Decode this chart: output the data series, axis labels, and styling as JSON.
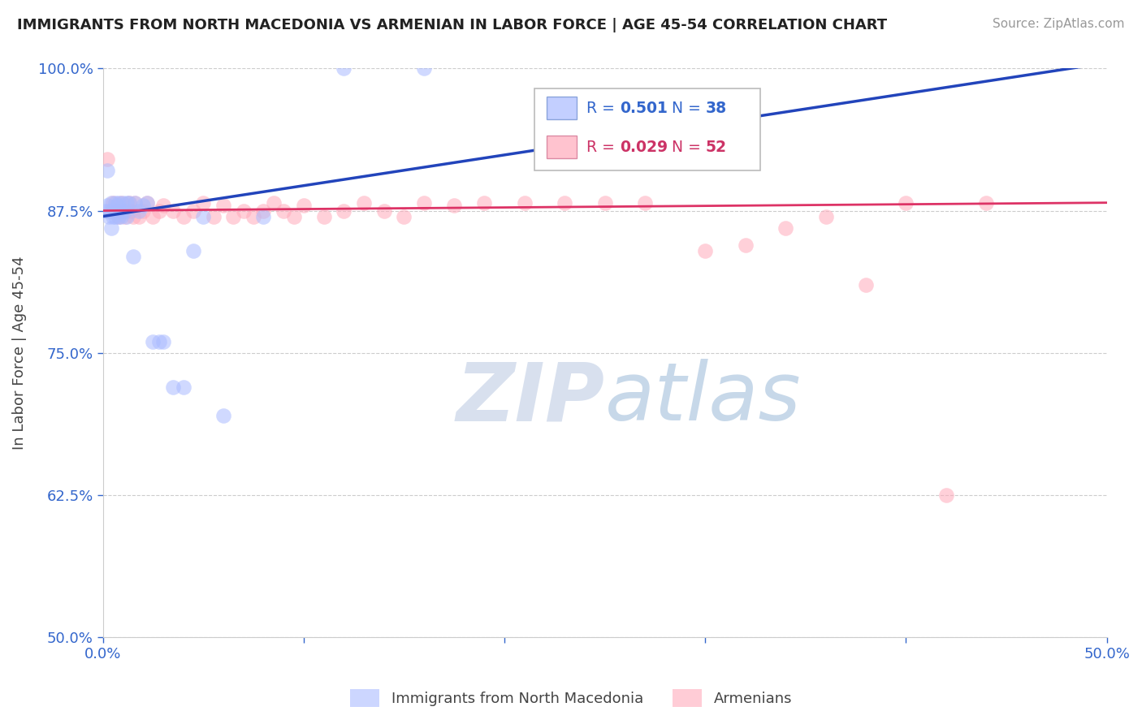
{
  "title": "IMMIGRANTS FROM NORTH MACEDONIA VS ARMENIAN IN LABOR FORCE | AGE 45-54 CORRELATION CHART",
  "source": "Source: ZipAtlas.com",
  "ylabel": "In Labor Force | Age 45-54",
  "xlim": [
    0.0,
    0.5
  ],
  "ylim": [
    0.5,
    1.0
  ],
  "xticks": [
    0.0,
    0.1,
    0.2,
    0.3,
    0.4,
    0.5
  ],
  "xticklabels": [
    "0.0%",
    "",
    "",
    "",
    "",
    "50.0%"
  ],
  "yticks": [
    0.5,
    0.625,
    0.75,
    0.875,
    1.0
  ],
  "yticklabels": [
    "50.0%",
    "62.5%",
    "75.0%",
    "87.5%",
    "100.0%"
  ],
  "R_blue": 0.501,
  "N_blue": 38,
  "R_pink": 0.029,
  "N_pink": 52,
  "blue_color": "#aabbff",
  "pink_color": "#ffaabb",
  "blue_line_color": "#2244bb",
  "pink_line_color": "#dd3366",
  "watermark_zip": "ZIP",
  "watermark_atlas": "atlas",
  "watermark_color_zip": "#c8d4e8",
  "watermark_color_atlas": "#b0c8e0",
  "legend_label_blue": "Immigrants from North Macedonia",
  "legend_label_pink": "Armenians",
  "blue_scatter_x": [
    0.001,
    0.002,
    0.002,
    0.003,
    0.003,
    0.004,
    0.004,
    0.005,
    0.005,
    0.006,
    0.006,
    0.007,
    0.007,
    0.008,
    0.008,
    0.009,
    0.009,
    0.01,
    0.011,
    0.012,
    0.012,
    0.013,
    0.015,
    0.016,
    0.018,
    0.02,
    0.022,
    0.025,
    0.028,
    0.03,
    0.035,
    0.04,
    0.045,
    0.05,
    0.06,
    0.08,
    0.12,
    0.16
  ],
  "blue_scatter_y": [
    0.875,
    0.91,
    0.88,
    0.875,
    0.87,
    0.882,
    0.86,
    0.875,
    0.87,
    0.882,
    0.87,
    0.875,
    0.88,
    0.882,
    0.87,
    0.875,
    0.87,
    0.882,
    0.875,
    0.882,
    0.87,
    0.882,
    0.835,
    0.882,
    0.875,
    0.88,
    0.882,
    0.76,
    0.76,
    0.76,
    0.72,
    0.72,
    0.84,
    0.87,
    0.695,
    0.87,
    1.0,
    1.0
  ],
  "pink_scatter_x": [
    0.002,
    0.004,
    0.005,
    0.007,
    0.008,
    0.009,
    0.01,
    0.011,
    0.013,
    0.014,
    0.015,
    0.016,
    0.018,
    0.02,
    0.022,
    0.025,
    0.028,
    0.03,
    0.035,
    0.04,
    0.045,
    0.05,
    0.055,
    0.06,
    0.065,
    0.07,
    0.075,
    0.08,
    0.085,
    0.09,
    0.095,
    0.1,
    0.11,
    0.12,
    0.13,
    0.14,
    0.15,
    0.16,
    0.175,
    0.19,
    0.21,
    0.23,
    0.25,
    0.27,
    0.3,
    0.32,
    0.34,
    0.36,
    0.38,
    0.4,
    0.42,
    0.44
  ],
  "pink_scatter_y": [
    0.92,
    0.875,
    0.882,
    0.875,
    0.87,
    0.882,
    0.875,
    0.87,
    0.882,
    0.875,
    0.87,
    0.882,
    0.87,
    0.875,
    0.882,
    0.87,
    0.875,
    0.88,
    0.875,
    0.87,
    0.875,
    0.882,
    0.87,
    0.88,
    0.87,
    0.875,
    0.87,
    0.875,
    0.882,
    0.875,
    0.87,
    0.88,
    0.87,
    0.875,
    0.882,
    0.875,
    0.87,
    0.882,
    0.88,
    0.882,
    0.882,
    0.882,
    0.882,
    0.882,
    0.84,
    0.845,
    0.86,
    0.87,
    0.81,
    0.882,
    0.625,
    0.882
  ],
  "blue_trendline_x": [
    0.0,
    0.5
  ],
  "blue_trendline_y": [
    0.87,
    1.005
  ],
  "pink_trendline_x": [
    0.0,
    0.5
  ],
  "pink_trendline_y": [
    0.875,
    0.882
  ]
}
